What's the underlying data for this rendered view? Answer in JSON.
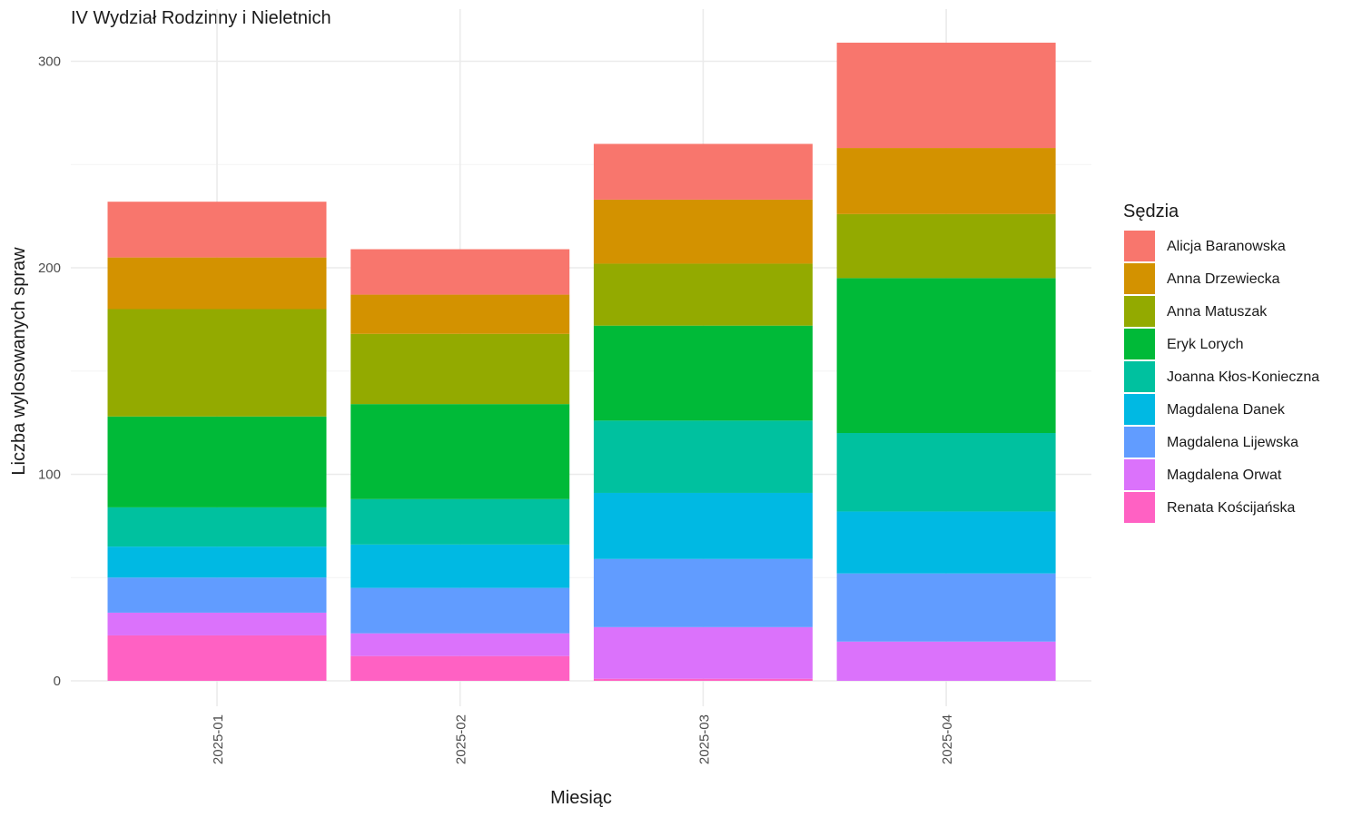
{
  "chart_data": {
    "type": "bar",
    "stacked": true,
    "title": "IV Wydział Rodzinny i Nieletnich",
    "xlabel": "Miesiąc",
    "ylabel": "Liczba wylosowanych spraw",
    "ylim": [
      0,
      310
    ],
    "yticks": [
      0,
      100,
      200,
      300
    ],
    "grid": true,
    "legend_title": "Sędzia",
    "legend_position": "right",
    "categories": [
      "2025-01",
      "2025-02",
      "2025-03",
      "2025-04"
    ],
    "series": [
      {
        "name": "Renata Kościjańska",
        "color": "#FF61C3",
        "values": [
          22,
          12,
          1,
          0
        ]
      },
      {
        "name": "Magdalena Orwat",
        "color": "#DB72FB",
        "values": [
          11,
          11,
          25,
          19
        ]
      },
      {
        "name": "Magdalena Lijewska",
        "color": "#619CFF",
        "values": [
          17,
          22,
          33,
          33
        ]
      },
      {
        "name": "Magdalena Danek",
        "color": "#00B9E3",
        "values": [
          15,
          21,
          32,
          30
        ]
      },
      {
        "name": "Joanna Kłos-Konieczna",
        "color": "#00C19F",
        "values": [
          19,
          22,
          35,
          38
        ]
      },
      {
        "name": "Eryk Lorych",
        "color": "#00BA38",
        "values": [
          44,
          46,
          46,
          75
        ]
      },
      {
        "name": "Anna Matuszak",
        "color": "#93AA00",
        "values": [
          52,
          34,
          30,
          31
        ]
      },
      {
        "name": "Anna Drzewiecka",
        "color": "#D39200",
        "values": [
          25,
          19,
          31,
          32
        ]
      },
      {
        "name": "Alicja Baranowska",
        "color": "#F8766D",
        "values": [
          27,
          22,
          27,
          51
        ]
      }
    ],
    "legend_order": [
      "Alicja Baranowska",
      "Anna Drzewiecka",
      "Anna Matuszak",
      "Eryk Lorych",
      "Joanna Kłos-Konieczna",
      "Magdalena Danek",
      "Magdalena Lijewska",
      "Magdalena Orwat",
      "Renata Kościjańska"
    ]
  }
}
